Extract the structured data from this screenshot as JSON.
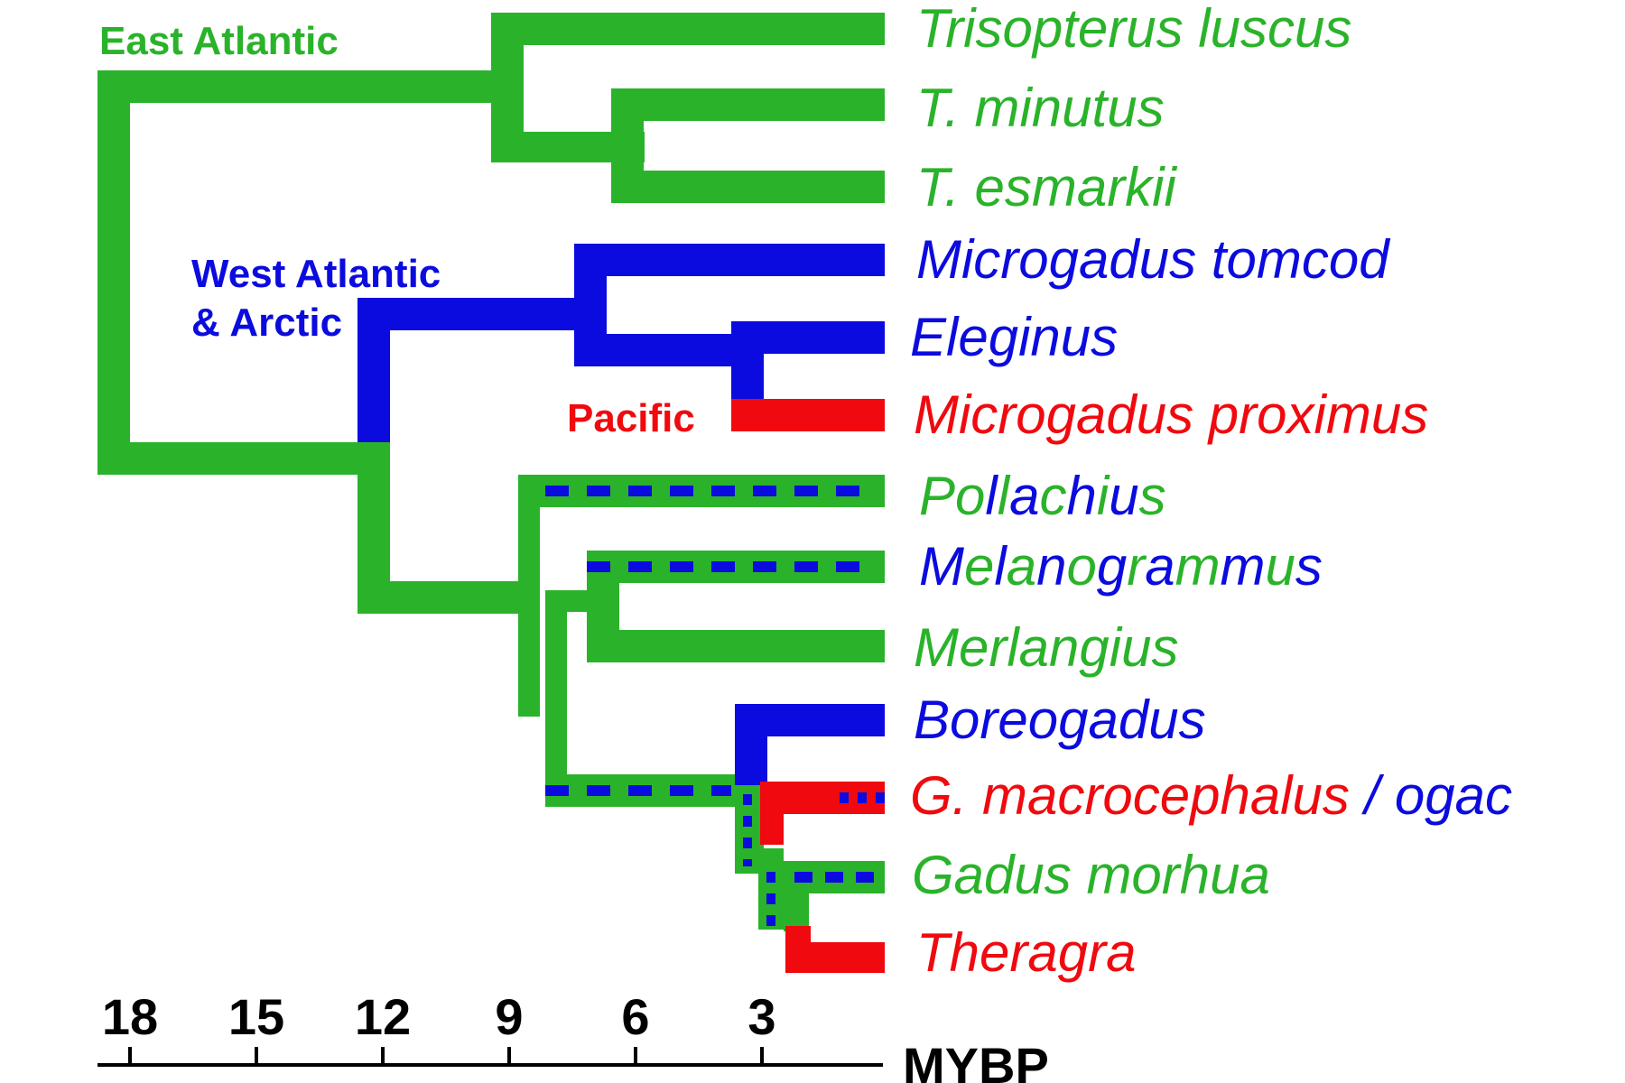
{
  "colors": {
    "green": "#2ab32a",
    "blue": "#0b0bdf",
    "red": "#f0090e",
    "black": "#000000"
  },
  "regions": {
    "east_atlantic": "East Atlantic",
    "west_atlantic_line1": "West Atlantic",
    "west_atlantic_line2": "& Arctic",
    "pacific": "Pacific"
  },
  "taxa": {
    "trisopterus_luscus": "Trisopterus luscus",
    "t_minutus": "T. minutus",
    "t_esmarkii": "T. esmarkii",
    "microgadus_tomcod": "Microgadus tomcod",
    "eleginus": "Eleginus",
    "microgadus_proximus": "Microgadus proximus",
    "pollachius": "Pollachius",
    "melanogrammus": "Melanogrammus",
    "merlangius": "Merlangius",
    "boreogadus": "Boreogadus",
    "g_macrocephalus": "G. macrocephalus",
    "slash_sep": " / ",
    "ogac": "ogac",
    "gadus_morhua": "Gadus morhua",
    "theragra": "Theragra"
  },
  "axis": {
    "ticks": [
      "18",
      "15",
      "12",
      "9",
      "6",
      "3"
    ],
    "unit": "MYBP"
  }
}
